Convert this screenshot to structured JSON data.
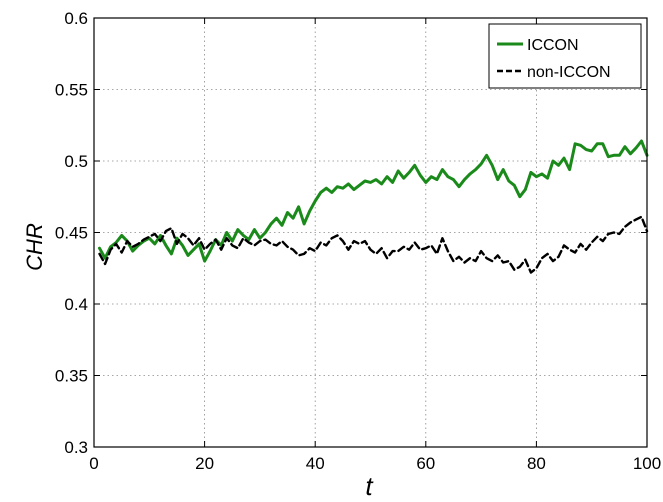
{
  "chart_data": {
    "type": "line",
    "title": "",
    "xlabel": "t",
    "ylabel": "CHR",
    "xlim": [
      0,
      100
    ],
    "ylim": [
      0.3,
      0.6
    ],
    "xticks": [
      0,
      20,
      40,
      60,
      80,
      100
    ],
    "xtick_labels": [
      "0",
      "20",
      "40",
      "60",
      "80",
      "100"
    ],
    "yticks": [
      0.3,
      0.35,
      0.4,
      0.45,
      0.5,
      0.55,
      0.6
    ],
    "ytick_labels": [
      "0.3",
      "0.35",
      "0.4",
      "0.45",
      "0.5",
      "0.55",
      "0.6"
    ],
    "grid": true,
    "legend_position": "top-right",
    "series": [
      {
        "name": "ICCON",
        "color": "#1a8a1a",
        "line_style": "solid",
        "x": [
          1,
          2,
          3,
          4,
          5,
          6,
          7,
          8,
          9,
          10,
          11,
          12,
          13,
          14,
          15,
          16,
          17,
          18,
          19,
          20,
          21,
          22,
          23,
          24,
          25,
          26,
          27,
          28,
          29,
          30,
          31,
          32,
          33,
          34,
          35,
          36,
          37,
          38,
          39,
          40,
          41,
          42,
          43,
          44,
          45,
          46,
          47,
          48,
          49,
          50,
          51,
          52,
          53,
          54,
          55,
          56,
          57,
          58,
          59,
          60,
          61,
          62,
          63,
          64,
          65,
          66,
          67,
          68,
          69,
          70,
          71,
          72,
          73,
          74,
          75,
          76,
          77,
          78,
          79,
          80,
          81,
          82,
          83,
          84,
          85,
          86,
          87,
          88,
          89,
          90,
          91,
          92,
          93,
          94,
          95,
          96,
          97,
          98,
          99,
          100
        ],
        "y": [
          0.439,
          0.432,
          0.44,
          0.443,
          0.448,
          0.444,
          0.437,
          0.441,
          0.444,
          0.446,
          0.442,
          0.448,
          0.441,
          0.435,
          0.446,
          0.441,
          0.434,
          0.438,
          0.442,
          0.43,
          0.437,
          0.445,
          0.441,
          0.45,
          0.444,
          0.452,
          0.448,
          0.445,
          0.452,
          0.446,
          0.45,
          0.456,
          0.46,
          0.455,
          0.464,
          0.46,
          0.468,
          0.456,
          0.465,
          0.472,
          0.478,
          0.481,
          0.478,
          0.482,
          0.481,
          0.484,
          0.48,
          0.483,
          0.486,
          0.485,
          0.487,
          0.484,
          0.489,
          0.485,
          0.493,
          0.488,
          0.492,
          0.497,
          0.49,
          0.485,
          0.489,
          0.487,
          0.494,
          0.489,
          0.487,
          0.482,
          0.487,
          0.491,
          0.494,
          0.498,
          0.504,
          0.497,
          0.487,
          0.494,
          0.486,
          0.483,
          0.475,
          0.48,
          0.492,
          0.489,
          0.491,
          0.488,
          0.5,
          0.497,
          0.502,
          0.494,
          0.512,
          0.511,
          0.508,
          0.507,
          0.512,
          0.512,
          0.503,
          0.504,
          0.504,
          0.51,
          0.505,
          0.509,
          0.514,
          0.504
        ]
      },
      {
        "name": "non-ICCON",
        "color": "#000000",
        "line_style": "dashed",
        "x": [
          1,
          2,
          3,
          4,
          5,
          6,
          7,
          8,
          9,
          10,
          11,
          12,
          13,
          14,
          15,
          16,
          17,
          18,
          19,
          20,
          21,
          22,
          23,
          24,
          25,
          26,
          27,
          28,
          29,
          30,
          31,
          32,
          33,
          34,
          35,
          36,
          37,
          38,
          39,
          40,
          41,
          42,
          43,
          44,
          45,
          46,
          47,
          48,
          49,
          50,
          51,
          52,
          53,
          54,
          55,
          56,
          57,
          58,
          59,
          60,
          61,
          62,
          63,
          64,
          65,
          66,
          67,
          68,
          69,
          70,
          71,
          72,
          73,
          74,
          75,
          76,
          77,
          78,
          79,
          80,
          81,
          82,
          83,
          84,
          85,
          86,
          87,
          88,
          89,
          90,
          91,
          92,
          93,
          94,
          95,
          96,
          97,
          98,
          99,
          100
        ],
        "y": [
          0.435,
          0.428,
          0.438,
          0.442,
          0.436,
          0.444,
          0.44,
          0.442,
          0.445,
          0.447,
          0.449,
          0.444,
          0.451,
          0.453,
          0.442,
          0.449,
          0.446,
          0.441,
          0.446,
          0.438,
          0.442,
          0.445,
          0.438,
          0.446,
          0.441,
          0.439,
          0.446,
          0.443,
          0.441,
          0.444,
          0.445,
          0.442,
          0.441,
          0.444,
          0.44,
          0.438,
          0.434,
          0.435,
          0.439,
          0.437,
          0.443,
          0.441,
          0.446,
          0.448,
          0.444,
          0.438,
          0.444,
          0.442,
          0.444,
          0.438,
          0.435,
          0.439,
          0.432,
          0.437,
          0.437,
          0.44,
          0.438,
          0.443,
          0.438,
          0.439,
          0.441,
          0.435,
          0.446,
          0.437,
          0.43,
          0.433,
          0.429,
          0.432,
          0.43,
          0.437,
          0.432,
          0.43,
          0.434,
          0.429,
          0.43,
          0.424,
          0.426,
          0.431,
          0.422,
          0.425,
          0.432,
          0.435,
          0.43,
          0.433,
          0.441,
          0.438,
          0.436,
          0.442,
          0.438,
          0.443,
          0.447,
          0.444,
          0.449,
          0.45,
          0.449,
          0.454,
          0.457,
          0.459,
          0.461,
          0.451
        ]
      }
    ]
  }
}
